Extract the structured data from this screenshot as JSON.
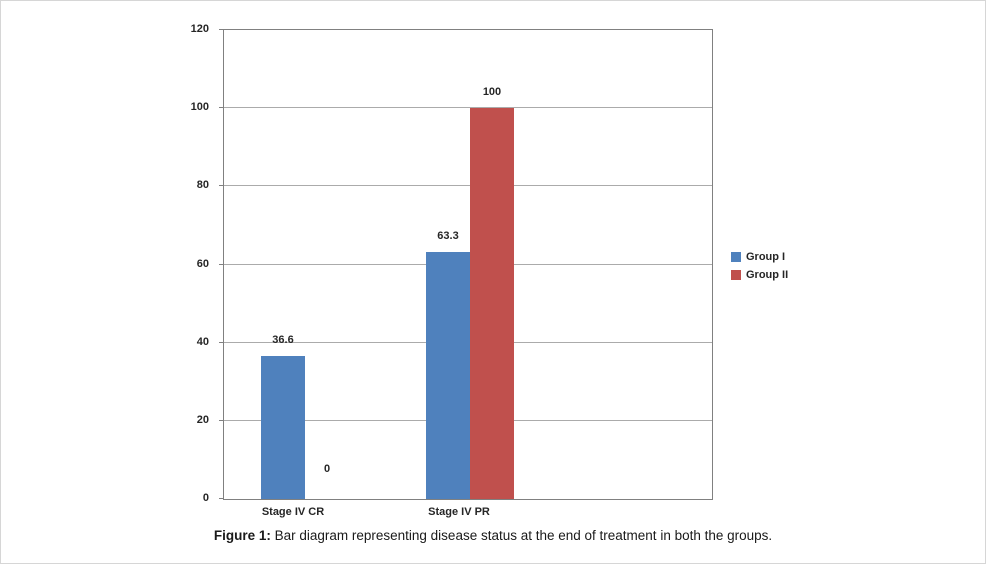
{
  "figure": {
    "caption_prefix": "Figure 1:",
    "caption_text": " Bar diagram representing disease status at the end of treatment in both the groups."
  },
  "chart_data": {
    "type": "bar",
    "title": "",
    "xlabel": "",
    "ylabel": "",
    "categories": [
      "Stage IV CR",
      "Stage IV PR"
    ],
    "series": [
      {
        "name": "Group I",
        "color": "#4f81bd",
        "values": [
          36.6,
          63.3
        ]
      },
      {
        "name": "Group II",
        "color": "#c0504d",
        "values": [
          0,
          100
        ]
      }
    ],
    "data_labels": [
      [
        "36.6",
        "63.3"
      ],
      [
        "0",
        "100"
      ]
    ],
    "ylim": [
      0,
      120
    ],
    "yticks": [
      0,
      20,
      40,
      60,
      80,
      100,
      120
    ],
    "grid": true,
    "legend_position": "right"
  }
}
